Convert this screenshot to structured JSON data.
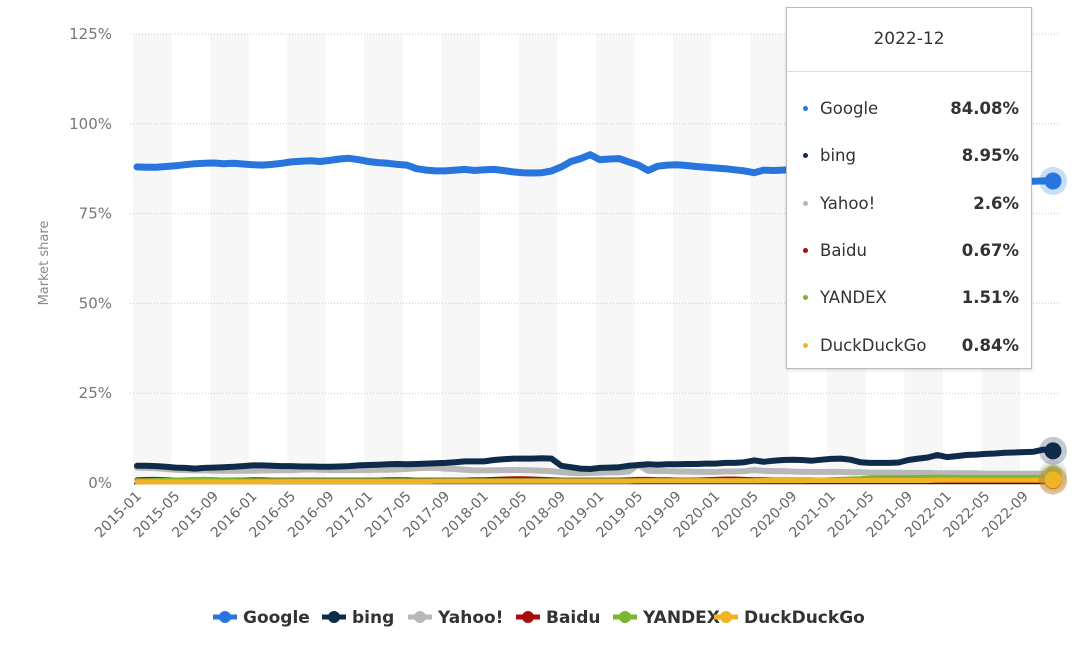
{
  "chart_data": {
    "type": "line",
    "ylabel": "Market share",
    "ylim": [
      0,
      125
    ],
    "yticks": [
      "0%",
      "25%",
      "50%",
      "75%",
      "100%",
      "125%"
    ],
    "ytick_values": [
      0,
      25,
      50,
      75,
      100,
      125
    ],
    "grid": true,
    "legend_position": "bottom",
    "x_start": "2015-01",
    "x_end": "2022-12",
    "xtick_labels": [
      "2015-01",
      "2015-05",
      "2015-09",
      "2016-01",
      "2016-05",
      "2016-09",
      "2017-01",
      "2017-05",
      "2017-09",
      "2018-01",
      "2018-05",
      "2018-09",
      "2019-01",
      "2019-05",
      "2019-09",
      "2020-01",
      "2020-05",
      "2020-09",
      "2021-01",
      "2021-05",
      "2021-09",
      "2022-01",
      "2022-05",
      "2022-09"
    ],
    "series": [
      {
        "name": "Google",
        "color": "#2876dd",
        "values": [
          88.0,
          87.9,
          87.9,
          88.1,
          88.3,
          88.6,
          88.9,
          89.0,
          89.1,
          88.9,
          89.0,
          88.8,
          88.6,
          88.5,
          88.7,
          89.0,
          89.4,
          89.6,
          89.7,
          89.5,
          89.8,
          90.2,
          90.4,
          90.0,
          89.5,
          89.2,
          89.0,
          88.7,
          88.5,
          87.5,
          87.1,
          86.9,
          86.9,
          87.1,
          87.3,
          87.0,
          87.2,
          87.3,
          87.0,
          86.6,
          86.4,
          86.3,
          86.4,
          86.9,
          88.0,
          89.5,
          90.3,
          91.4,
          90.0,
          90.2,
          90.3,
          89.4,
          88.5,
          87.0,
          88.2,
          88.5,
          88.6,
          88.4,
          88.1,
          87.9,
          87.7,
          87.5,
          87.2,
          86.9,
          86.4,
          87.1,
          87.0,
          87.1,
          87.2,
          87.0,
          86.8,
          86.6,
          86.5,
          86.3,
          86.0,
          86.1,
          85.9,
          85.8,
          85.5,
          85.3,
          85.0,
          84.8,
          84.6,
          84.5,
          84.5,
          84.3,
          84.2,
          84.1,
          84.0,
          84.1,
          84.2,
          84.0,
          84.1,
          84.0,
          84.1,
          84.08
        ]
      },
      {
        "name": "Yahoo!",
        "color": "#b8b8b8",
        "values": [
          4.3,
          4.2,
          4.1,
          3.9,
          3.7,
          3.6,
          3.5,
          3.5,
          3.4,
          3.4,
          3.4,
          3.4,
          3.4,
          3.5,
          3.5,
          3.5,
          3.6,
          3.7,
          3.8,
          3.7,
          3.6,
          3.6,
          3.6,
          3.6,
          3.6,
          3.7,
          3.7,
          3.8,
          3.9,
          4.1,
          4.2,
          4.2,
          4.0,
          3.9,
          3.7,
          3.5,
          3.5,
          3.5,
          3.6,
          3.6,
          3.6,
          3.5,
          3.4,
          3.3,
          3.0,
          2.8,
          2.7,
          2.8,
          2.9,
          3.0,
          3.0,
          3.2,
          5.0,
          3.4,
          3.3,
          3.3,
          3.2,
          3.2,
          3.1,
          3.1,
          3.1,
          3.2,
          3.2,
          3.3,
          3.6,
          3.4,
          3.3,
          3.3,
          3.2,
          3.1,
          3.1,
          3.1,
          3.1,
          3.1,
          3.0,
          3.0,
          2.9,
          2.9,
          2.9,
          2.9,
          2.8,
          2.8,
          2.8,
          2.7,
          2.7,
          2.7,
          2.7,
          2.7,
          2.6,
          2.6,
          2.6,
          2.6,
          2.6,
          2.6,
          2.6,
          2.6
        ]
      },
      {
        "name": "bing",
        "color": "#0f2b4a",
        "values": [
          4.8,
          4.8,
          4.7,
          4.5,
          4.3,
          4.2,
          4.0,
          4.2,
          4.3,
          4.4,
          4.5,
          4.7,
          4.9,
          4.9,
          4.8,
          4.7,
          4.7,
          4.6,
          4.6,
          4.5,
          4.5,
          4.6,
          4.7,
          4.9,
          5.0,
          5.1,
          5.2,
          5.3,
          5.2,
          5.3,
          5.4,
          5.5,
          5.6,
          5.8,
          6.0,
          6.0,
          6.0,
          6.4,
          6.6,
          6.8,
          6.8,
          6.8,
          6.9,
          6.8,
          4.8,
          4.4,
          4.0,
          3.9,
          4.2,
          4.3,
          4.4,
          4.8,
          5.0,
          5.2,
          5.1,
          5.2,
          5.2,
          5.3,
          5.3,
          5.4,
          5.4,
          5.6,
          5.6,
          5.8,
          6.3,
          5.9,
          6.2,
          6.4,
          6.5,
          6.4,
          6.2,
          6.5,
          6.7,
          6.8,
          6.5,
          5.8,
          5.6,
          5.6,
          5.6,
          5.7,
          6.4,
          6.8,
          7.1,
          7.8,
          7.2,
          7.5,
          7.8,
          7.9,
          8.1,
          8.2,
          8.4,
          8.5,
          8.6,
          8.7,
          9.3,
          8.95
        ]
      },
      {
        "name": "Baidu",
        "color": "#a90c0c",
        "values": [
          0.9,
          1.0,
          1.0,
          0.9,
          0.8,
          0.8,
          0.9,
          1.0,
          0.9,
          0.8,
          0.8,
          0.8,
          0.9,
          0.9,
          0.8,
          0.8,
          0.8,
          0.8,
          0.8,
          0.8,
          0.8,
          0.8,
          0.8,
          0.8,
          0.8,
          0.8,
          0.9,
          0.9,
          0.9,
          0.8,
          0.8,
          0.8,
          0.8,
          0.8,
          0.8,
          0.9,
          0.9,
          1.0,
          1.1,
          1.2,
          1.2,
          1.1,
          1.0,
          0.9,
          0.8,
          0.8,
          0.8,
          0.8,
          0.8,
          0.8,
          0.8,
          0.9,
          1.0,
          1.0,
          0.9,
          0.9,
          0.8,
          0.8,
          0.8,
          0.9,
          1.0,
          1.1,
          1.1,
          1.0,
          0.9,
          0.9,
          0.8,
          0.8,
          0.8,
          0.8,
          0.8,
          0.7,
          0.7,
          0.7,
          0.7,
          0.7,
          0.7,
          0.7,
          0.7,
          0.7,
          0.7,
          0.7,
          0.7,
          0.7,
          0.7,
          0.7,
          0.7,
          0.7,
          0.7,
          0.7,
          0.7,
          0.7,
          0.7,
          0.7,
          0.7,
          0.67
        ]
      },
      {
        "name": "YANDEX",
        "color": "#7ab62e",
        "values": [
          0.6,
          0.6,
          0.7,
          0.7,
          0.8,
          0.9,
          1.0,
          1.0,
          0.9,
          0.8,
          0.7,
          0.6,
          0.6,
          0.6,
          0.6,
          0.6,
          0.6,
          0.6,
          0.6,
          0.6,
          0.6,
          0.6,
          0.6,
          0.6,
          0.6,
          0.6,
          0.6,
          0.6,
          0.6,
          0.6,
          0.6,
          0.6,
          0.6,
          0.6,
          0.6,
          0.6,
          0.6,
          0.6,
          0.6,
          0.6,
          0.6,
          0.6,
          0.6,
          0.6,
          0.6,
          0.6,
          0.6,
          0.6,
          0.6,
          0.6,
          0.6,
          0.6,
          0.6,
          0.6,
          0.6,
          0.6,
          0.6,
          0.6,
          0.6,
          0.6,
          0.6,
          0.6,
          0.6,
          0.6,
          0.6,
          0.6,
          0.6,
          0.6,
          0.6,
          0.6,
          0.7,
          0.8,
          0.9,
          1.0,
          1.1,
          1.2,
          1.4,
          1.5,
          1.5,
          1.5,
          1.5,
          1.5,
          1.6,
          1.6,
          1.6,
          1.5,
          1.5,
          1.5,
          1.5,
          1.5,
          1.5,
          1.5,
          1.5,
          1.5,
          1.5,
          1.51
        ]
      },
      {
        "name": "DuckDuckGo",
        "color": "#f0b323",
        "values": [
          0.3,
          0.3,
          0.3,
          0.3,
          0.3,
          0.3,
          0.3,
          0.3,
          0.3,
          0.3,
          0.3,
          0.3,
          0.3,
          0.3,
          0.3,
          0.4,
          0.4,
          0.4,
          0.4,
          0.4,
          0.4,
          0.4,
          0.4,
          0.4,
          0.4,
          0.4,
          0.4,
          0.4,
          0.4,
          0.4,
          0.4,
          0.5,
          0.5,
          0.5,
          0.5,
          0.5,
          0.5,
          0.5,
          0.5,
          0.5,
          0.5,
          0.5,
          0.5,
          0.5,
          0.5,
          0.5,
          0.5,
          0.5,
          0.5,
          0.5,
          0.5,
          0.5,
          0.6,
          0.6,
          0.6,
          0.6,
          0.6,
          0.6,
          0.6,
          0.6,
          0.6,
          0.6,
          0.6,
          0.6,
          0.6,
          0.7,
          0.7,
          0.7,
          0.7,
          0.7,
          0.7,
          0.7,
          0.7,
          0.7,
          0.7,
          0.7,
          0.7,
          0.7,
          0.7,
          0.7,
          0.7,
          0.7,
          0.7,
          0.8,
          0.8,
          0.8,
          0.8,
          0.8,
          0.8,
          0.8,
          0.8,
          0.8,
          0.8,
          0.8,
          0.8,
          0.84
        ]
      }
    ]
  },
  "tooltip": {
    "date": "2022-12",
    "rows": [
      {
        "name": "Google",
        "value": "84.08%",
        "color": "#2876dd"
      },
      {
        "name": "bing",
        "value": "8.95%",
        "color": "#0f2b4a"
      },
      {
        "name": "Yahoo!",
        "value": "2.6%",
        "color": "#b8b8b8"
      },
      {
        "name": "Baidu",
        "value": "0.67%",
        "color": "#a90c0c"
      },
      {
        "name": "YANDEX",
        "value": "1.51%",
        "color": "#7ab62e"
      },
      {
        "name": "DuckDuckGo",
        "value": "0.84%",
        "color": "#f0b323"
      }
    ]
  },
  "legend": [
    "Google",
    "bing",
    "Yahoo!",
    "Baidu",
    "YANDEX",
    "DuckDuckGo"
  ]
}
